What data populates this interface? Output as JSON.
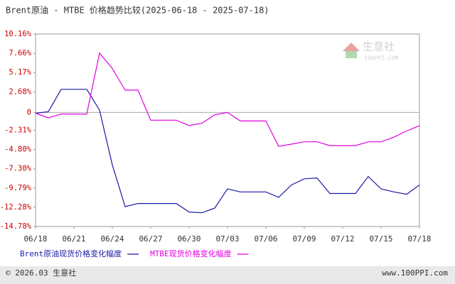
{
  "chart_data": {
    "type": "line",
    "title": "Brent原油 - MTBE 价格趋势比较(2025-06-18 - 2025-07-18)",
    "categories": [
      "06/18",
      null,
      null,
      "06/21",
      null,
      null,
      "06/24",
      null,
      null,
      "06/27",
      null,
      null,
      "06/30",
      null,
      null,
      "07/03",
      null,
      null,
      "07/06",
      null,
      null,
      "07/09",
      null,
      null,
      "07/12",
      null,
      null,
      "07/15",
      null,
      null,
      "07/18"
    ],
    "series": [
      {
        "name": "Brent原油现货价格变化幅度",
        "color": "#1a1aa6",
        "values": [
          -0.1,
          0.1,
          3.0,
          3.0,
          3.0,
          0.3,
          -6.8,
          -12.2,
          -11.8,
          -11.8,
          -11.8,
          -11.8,
          -12.9,
          -13.0,
          -12.4,
          -9.9,
          -10.3,
          -10.3,
          -10.3,
          -11.0,
          -9.4,
          -8.6,
          -8.5,
          -10.5,
          -10.5,
          -10.5,
          -8.3,
          -9.9,
          -10.3,
          -10.6,
          -9.4
        ]
      },
      {
        "name": "MTBE现货价格变化幅度",
        "color": "#e000e0",
        "values": [
          -0.1,
          -0.7,
          -0.2,
          -0.2,
          -0.2,
          7.7,
          5.7,
          2.9,
          2.9,
          -1.0,
          -1.0,
          -1.0,
          -1.7,
          -1.4,
          -0.3,
          0.0,
          -1.1,
          -1.1,
          -1.1,
          -4.4,
          -4.1,
          -3.8,
          -3.8,
          -4.3,
          -4.3,
          -4.3,
          -3.8,
          -3.8,
          -3.2,
          -2.4,
          -1.7
        ]
      }
    ],
    "ylim": [
      -14.78,
      10.16
    ],
    "yticks": [
      {
        "value": 10.16,
        "label": "10.16%"
      },
      {
        "value": 7.66,
        "label": "7.66%"
      },
      {
        "value": 5.17,
        "label": "5.17%"
      },
      {
        "value": 2.68,
        "label": "2.68%"
      },
      0,
      {
        "value": -2.31,
        "label": "-2.31%"
      },
      {
        "value": -4.8,
        "label": "-4.80%"
      },
      {
        "value": -7.3,
        "label": "-7.30%"
      },
      {
        "value": -9.79,
        "label": "-9.79%"
      },
      {
        "value": -12.28,
        "label": "-12.28%"
      },
      {
        "value": -14.78,
        "label": "-14.78%"
      }
    ],
    "grid": false
  },
  "watermark": {
    "name": "生意社",
    "site": "100PPI.COM"
  },
  "footer": {
    "copyright": "© 2026.03 生意社",
    "site": "www.100PPI.com"
  }
}
